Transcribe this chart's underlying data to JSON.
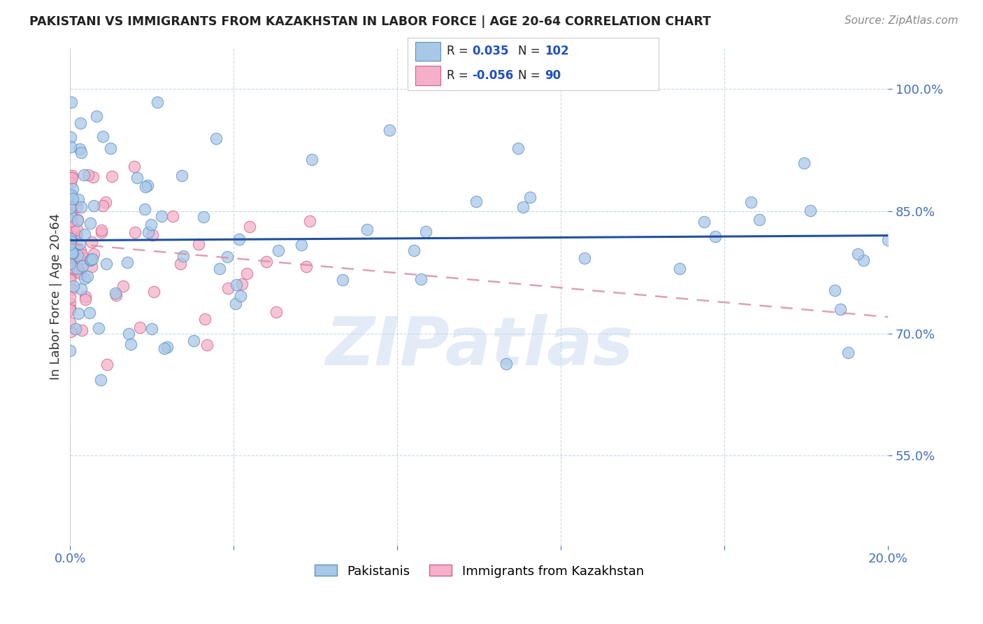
{
  "title": "PAKISTANI VS IMMIGRANTS FROM KAZAKHSTAN IN LABOR FORCE | AGE 20-64 CORRELATION CHART",
  "source": "Source: ZipAtlas.com",
  "ylabel_label": "In Labor Force | Age 20-64",
  "xlim": [
    0.0,
    0.2
  ],
  "ylim": [
    0.44,
    1.05
  ],
  "xticks": [
    0.0,
    0.04,
    0.08,
    0.12,
    0.16,
    0.2
  ],
  "yticks": [
    0.55,
    0.7,
    0.85,
    1.0
  ],
  "xticklabels": [
    "0.0%",
    "",
    "",
    "",
    "",
    "20.0%"
  ],
  "yticklabels": [
    "55.0%",
    "70.0%",
    "85.0%",
    "100.0%"
  ],
  "watermark": "ZIPatlas",
  "pakistanis_color": "#a8c8e8",
  "kazakh_color": "#f4b0c8",
  "pakistanis_edge": "#6090c0",
  "kazakh_edge": "#d06090",
  "trendline_pak_color": "#2050a0",
  "trendline_kaz_color": "#d890a8",
  "background_color": "#ffffff",
  "grid_color": "#c8d8e8",
  "R_pak": 0.035,
  "N_pak": 102,
  "R_kaz": -0.056,
  "N_kaz": 90,
  "pak_trendline_y0": 0.814,
  "pak_trendline_y1": 0.82,
  "kaz_trendline_y0": 0.81,
  "kaz_trendline_y1": 0.72
}
